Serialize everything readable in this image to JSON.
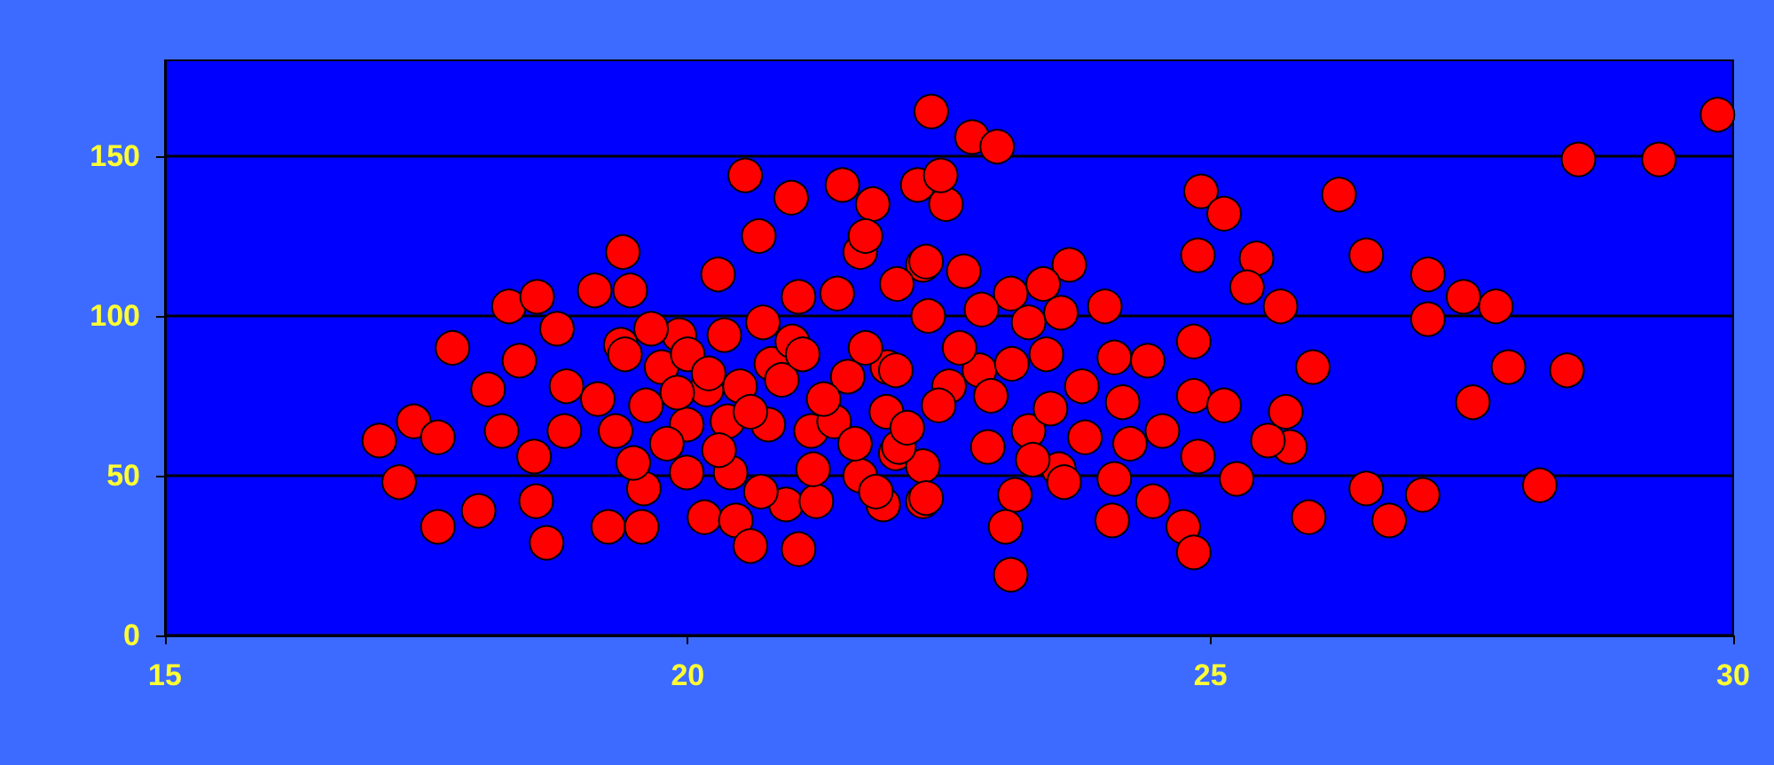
{
  "chart_data": {
    "type": "scatter",
    "color": "#ff0000",
    "marker": "circle",
    "grid": "y",
    "xlim": [
      15,
      30
    ],
    "ylim": [
      0,
      180
    ],
    "xticks": [
      15,
      20,
      25,
      30
    ],
    "yticks": [
      0,
      50,
      100,
      150
    ],
    "x": [
      17.75,
      17.05,
      17.38,
      17.61,
      17.24,
      17.61,
      18.0,
      18.09,
      18.39,
      18.29,
      18.56,
      18.75,
      18.22,
      18.53,
      18.55,
      18.65,
      18.82,
      18.84,
      19.14,
      19.11,
      19.45,
      19.38,
      19.24,
      19.56,
      19.58,
      19.48,
      19.31,
      19.36,
      19.75,
      19.92,
      19.65,
      19.99,
      19.99,
      20.16,
      20.18,
      20.38,
      20.41,
      20.46,
      20.6,
      20.29,
      20.35,
      20.55,
      20.68,
      20.99,
      20.77,
      20.8,
      20.72,
      21.06,
      21.0,
      21.06,
      20.94,
      21.23,
      21.18,
      21.4,
      21.43,
      21.53,
      21.65,
      21.48,
      21.77,
      21.91,
      21.99,
      21.87,
      21.65,
      22.25,
      22.2,
      22.33,
      22.47,
      22.25,
      22.25,
      22.72,
      22.96,
      22.42,
      22.28,
      22.64,
      23.09,
      22.81,
      23.65,
      23.57,
      23.99,
      23.26,
      23.43,
      22.79,
      22.5,
      21.99,
      22.02,
      22.28,
      22.87,
      23.13,
      23.04,
      23.09,
      23.26,
      23.47,
      23.55,
      23.77,
      24.08,
      24.4,
      24.16,
      24.23,
      24.54,
      24.08,
      24.06,
      24.45,
      24.74,
      24.84,
      24.88,
      24.84,
      25.13,
      24.84,
      25.25,
      24.91,
      25.13,
      24.88,
      25.44,
      25.35,
      25.67,
      25.98,
      25.72,
      25.76,
      25.55,
      25.94,
      26.23,
      26.49,
      26.49,
      26.71,
      27.03,
      27.08,
      27.08,
      27.42,
      27.73,
      27.51,
      27.85,
      28.15,
      28.41,
      28.52,
      29.29,
      29.85,
      19.6,
      19.8,
      20.0,
      20.2,
      20.5,
      20.6,
      20.9,
      21.1,
      21.3,
      21.6,
      21.7,
      21.9,
      22.1,
      22.4,
      22.6,
      22.9,
      23.1,
      23.3,
      23.6,
      23.8,
      19.4,
      19.9,
      20.3,
      21.2,
      21.8,
      20.7,
      22.3,
      22.0,
      21.7,
      23.4
    ],
    "values": [
      90,
      61,
      67,
      62,
      48,
      34,
      39,
      77,
      86,
      103,
      106,
      96,
      64,
      56,
      42,
      29,
      64,
      78,
      74,
      108,
      108,
      120,
      34,
      34,
      46,
      54,
      64,
      91,
      84,
      94,
      96,
      66,
      51,
      37,
      77,
      67,
      51,
      36,
      28,
      113,
      94,
      144,
      125,
      137,
      66,
      85,
      98,
      106,
      92,
      27,
      41,
      42,
      64,
      67,
      107,
      81,
      120,
      141,
      135,
      84,
      57,
      41,
      50,
      116,
      141,
      164,
      135,
      53,
      42,
      156,
      153,
      144,
      117,
      114,
      107,
      102,
      116,
      101,
      103,
      98,
      88,
      83,
      78,
      83,
      59,
      43,
      59,
      44,
      34,
      19,
      64,
      71,
      52,
      78,
      87,
      86,
      73,
      60,
      64,
      49,
      36,
      42,
      34,
      26,
      56,
      75,
      72,
      92,
      49,
      139,
      132,
      119,
      118,
      109,
      103,
      84,
      70,
      59,
      61,
      37,
      138,
      119,
      46,
      36,
      44,
      113,
      99,
      106,
      103,
      73,
      84,
      47,
      83,
      149,
      149,
      163,
      72,
      60,
      88,
      82,
      78,
      70,
      80,
      88,
      74,
      60,
      90,
      70,
      65,
      72,
      90,
      75,
      85,
      55,
      48,
      62,
      88,
      76,
      58,
      52,
      45,
      45,
      100,
      110,
      125,
      110
    ]
  }
}
